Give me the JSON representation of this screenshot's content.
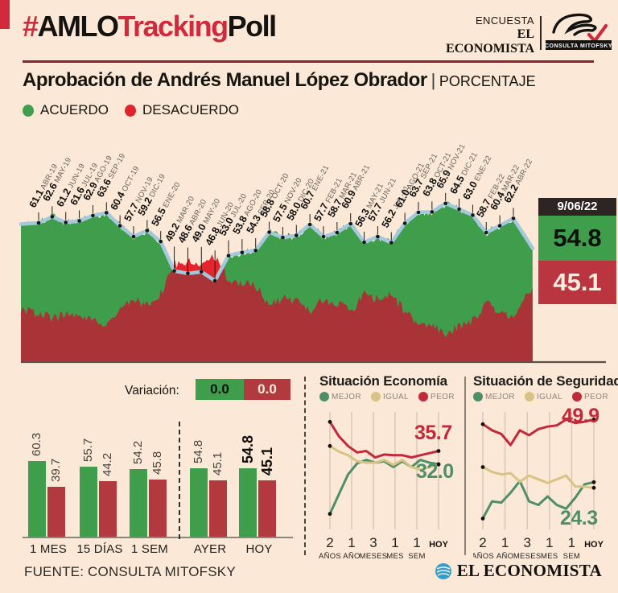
{
  "colors": {
    "background": "#fce8d7",
    "green": "#3f9e4c",
    "red_bright": "#e5242b",
    "red_dark": "#a93438",
    "red_bar": "#b23a3e",
    "crimson": "#d2293d",
    "blue_line": "#a4c9dd",
    "tan": "#d8c385",
    "mini_green": "#4f8f68",
    "mini_red": "#c2293a",
    "date_box": "#2c2523"
  },
  "header": {
    "hash": "#",
    "amlo": "AMLO",
    "tracking": "Tracking",
    "poll": "Poll",
    "encuesta": "ENCUESTA",
    "economista": "EL ECONOMISTA",
    "mitofsky": "CONSULTA MITOFSKY"
  },
  "title": {
    "main": "Aprobación de Andrés Manuel López Obrador",
    "separator": "|",
    "unit": "PORCENTAJE"
  },
  "legend": {
    "acuerdo": "ACUERDO",
    "desacuerdo": "DESACUERDO"
  },
  "current": {
    "date": "9/06/22",
    "acuerdo": "54.8",
    "desacuerdo": "45.1"
  },
  "variacion": {
    "label": "Variación:",
    "green": "0.0",
    "red": "0.0"
  },
  "mini_legend": [
    "MEJOR",
    "IGUAL",
    "PEOR"
  ],
  "economia": {
    "title": "Situación Economía",
    "peor_label": "35.7",
    "mejor_label": "32.0"
  },
  "seguridad": {
    "title": "Situación de Seguridad",
    "peor_label": "49.9",
    "mejor_label": "24.3"
  },
  "footer": {
    "fuente": "FUENTE: CONSULTA MITOFSKY",
    "brand": "EL ECONOMISTA"
  },
  "chart_data": [
    {
      "type": "area",
      "name": "aprobacion-tracking",
      "title": "Aprobación de Andrés Manuel López Obrador (%)",
      "categories": [
        "ABR-19",
        "MAY-19",
        "JUN-19",
        "JUL-19",
        "AGO-19",
        "SEP-19",
        "OCT-19",
        "NOV-19",
        "DIC-19",
        "ENE-20",
        "MAR-20",
        "ABR-20",
        "MAY-20",
        "JUN-20",
        "JUL-20",
        "AGO-20",
        "SEP-20",
        "OCT-20",
        "NOV-20",
        "DIC-20",
        "ENE-21",
        "FEB-21",
        "MAR-21",
        "ABR-21",
        "MAY-21",
        "JUN-21",
        "JUL-21",
        "AGO-21",
        "SEP-21",
        "OCT-21",
        "NOV-21",
        "DIC-21",
        "ENE-22",
        "FEB-22",
        "MAR-22",
        "ABR-22"
      ],
      "series": [
        {
          "name": "ACUERDO",
          "values": [
            61.1,
            62.6,
            61.2,
            61.6,
            62.9,
            63.6,
            60.4,
            57.7,
            59.2,
            56.5,
            49.2,
            48.6,
            49.0,
            46.8,
            53.0,
            53.8,
            54.3,
            58.8,
            57.5,
            58.0,
            60.7,
            57.7,
            58.7,
            60.9,
            56.3,
            57.7,
            56.2,
            61.0,
            63.7,
            63.8,
            65.9,
            64.5,
            63.0,
            58.7,
            60.4,
            62.2
          ]
        }
      ],
      "current": {
        "date": "9/06/22",
        "acuerdo": 54.8,
        "desacuerdo": 45.1
      },
      "ylim": [
        26,
        68
      ],
      "legend": [
        "ACUERDO",
        "DESACUERDO"
      ]
    },
    {
      "type": "bar",
      "name": "variacion-bars",
      "title": "Variación",
      "categories": [
        "1 MES",
        "15 DÍAS",
        "1 SEM",
        "AYER",
        "HOY"
      ],
      "series": [
        {
          "name": "ACUERDO",
          "values": [
            60.3,
            55.7,
            54.2,
            54.8,
            54.8
          ]
        },
        {
          "name": "DESACUERDO",
          "values": [
            39.7,
            44.2,
            45.8,
            45.1,
            45.1
          ]
        }
      ],
      "variacion": {
        "ACUERDO": 0.0,
        "DESACUERDO": 0.0
      }
    },
    {
      "type": "line",
      "name": "situacion-economia",
      "title": "Situación Economía",
      "x_ticks": [
        "2 AÑOS",
        "1 AÑO",
        "3 MESES",
        "1 MES",
        "1 SEM",
        "HOY"
      ],
      "series": [
        {
          "name": "MEJOR",
          "values": [
            18.0,
            23.6,
            29.1,
            32.2,
            33.2,
            32.4,
            32.8,
            31.2,
            32.8,
            31.2,
            33.2,
            32.4,
            32.0
          ]
        },
        {
          "name": "IGUAL",
          "values": [
            37.1,
            35.5,
            34.5,
            32.8,
            32.4,
            32.4,
            33.2,
            31.8,
            33.2,
            31.2,
            30.4,
            31.2,
            31.9
          ]
        },
        {
          "name": "PEOR",
          "values": [
            43.9,
            39.8,
            37.1,
            35.3,
            35.7,
            33.9,
            34.7,
            34.5,
            34.5,
            33.9,
            34.5,
            35.1,
            35.7
          ]
        }
      ],
      "end_labels": {
        "PEOR": 35.7,
        "MEJOR": 32.0
      }
    },
    {
      "type": "line",
      "name": "situacion-seguridad",
      "title": "Situación de Seguridad",
      "x_ticks": [
        "2 AÑOS",
        "1 AÑO",
        "3 MESES",
        "1 MES",
        "1 SEM",
        "HOY"
      ],
      "series": [
        {
          "name": "MEJOR",
          "values": [
            9.5,
            16.5,
            16.0,
            20.0,
            24.8,
            16.5,
            15.0,
            18.5,
            15.0,
            13.5,
            18.0,
            23.5,
            24.3
          ]
        },
        {
          "name": "IGUAL",
          "values": [
            30.5,
            28.5,
            27.5,
            28.0,
            24.5,
            27.0,
            25.5,
            24.0,
            25.5,
            27.0,
            22.5,
            22.5,
            22.0
          ]
        },
        {
          "name": "PEOR",
          "values": [
            48.0,
            45.5,
            44.0,
            39.5,
            45.5,
            43.5,
            46.0,
            47.0,
            47.5,
            49.9,
            48.5,
            49.0,
            49.9
          ]
        }
      ],
      "end_labels": {
        "PEOR": 49.9,
        "MEJOR": 24.3
      }
    }
  ]
}
